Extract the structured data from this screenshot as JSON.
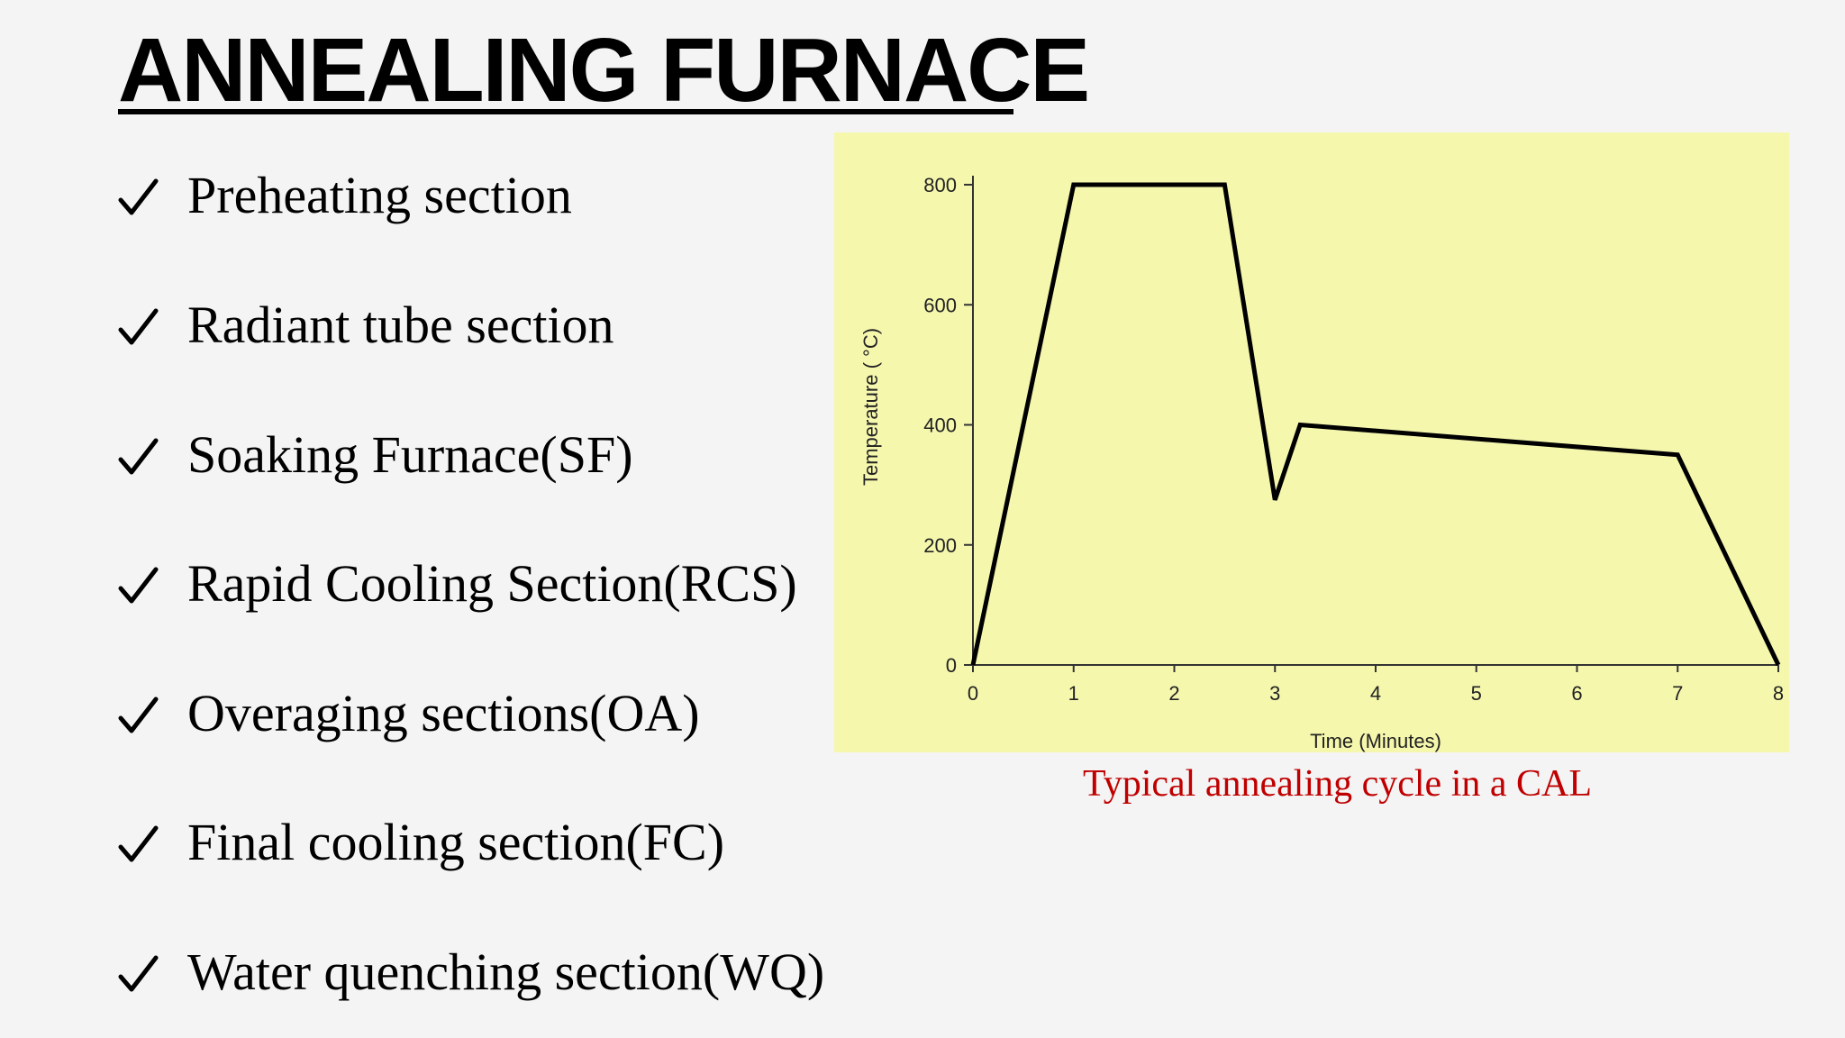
{
  "slide": {
    "title": "ANNEALING FURNACE",
    "bullets": [
      {
        "text": "Preheating section",
        "icon": "check-icon"
      },
      {
        "text": "Radiant tube section",
        "icon": "check-icon"
      },
      {
        "text": "Soaking Furnace(SF)",
        "icon": "check-icon"
      },
      {
        "text": "Rapid Cooling Section(RCS)",
        "icon": "check-icon"
      },
      {
        "text": "Overaging sections(OA)",
        "icon": "check-icon"
      },
      {
        "text": "Final cooling section(FC)",
        "icon": "check-icon"
      },
      {
        "text": "Water quenching section(WQ)",
        "icon": "check-icon"
      }
    ],
    "caption": "Typical annealing cycle in a CAL",
    "colors": {
      "background": "#f4f4f4",
      "chart_background": "#f5f7ad",
      "caption": "#c00000",
      "line": "#000000"
    }
  },
  "chart_data": {
    "type": "line",
    "title": "",
    "xlabel": "Time (Minutes)",
    "ylabel": "Temperature ( °C)",
    "xlim": [
      0,
      8
    ],
    "ylim": [
      0,
      800
    ],
    "xticks": [
      0,
      1,
      2,
      3,
      4,
      5,
      6,
      7,
      8
    ],
    "yticks": [
      0,
      200,
      400,
      600,
      800
    ],
    "grid": false,
    "legend": "none",
    "series": [
      {
        "x": [
          0,
          1,
          2.5,
          3,
          3.25,
          7,
          8
        ],
        "y": [
          0,
          800,
          800,
          275,
          400,
          350,
          0
        ]
      }
    ]
  }
}
